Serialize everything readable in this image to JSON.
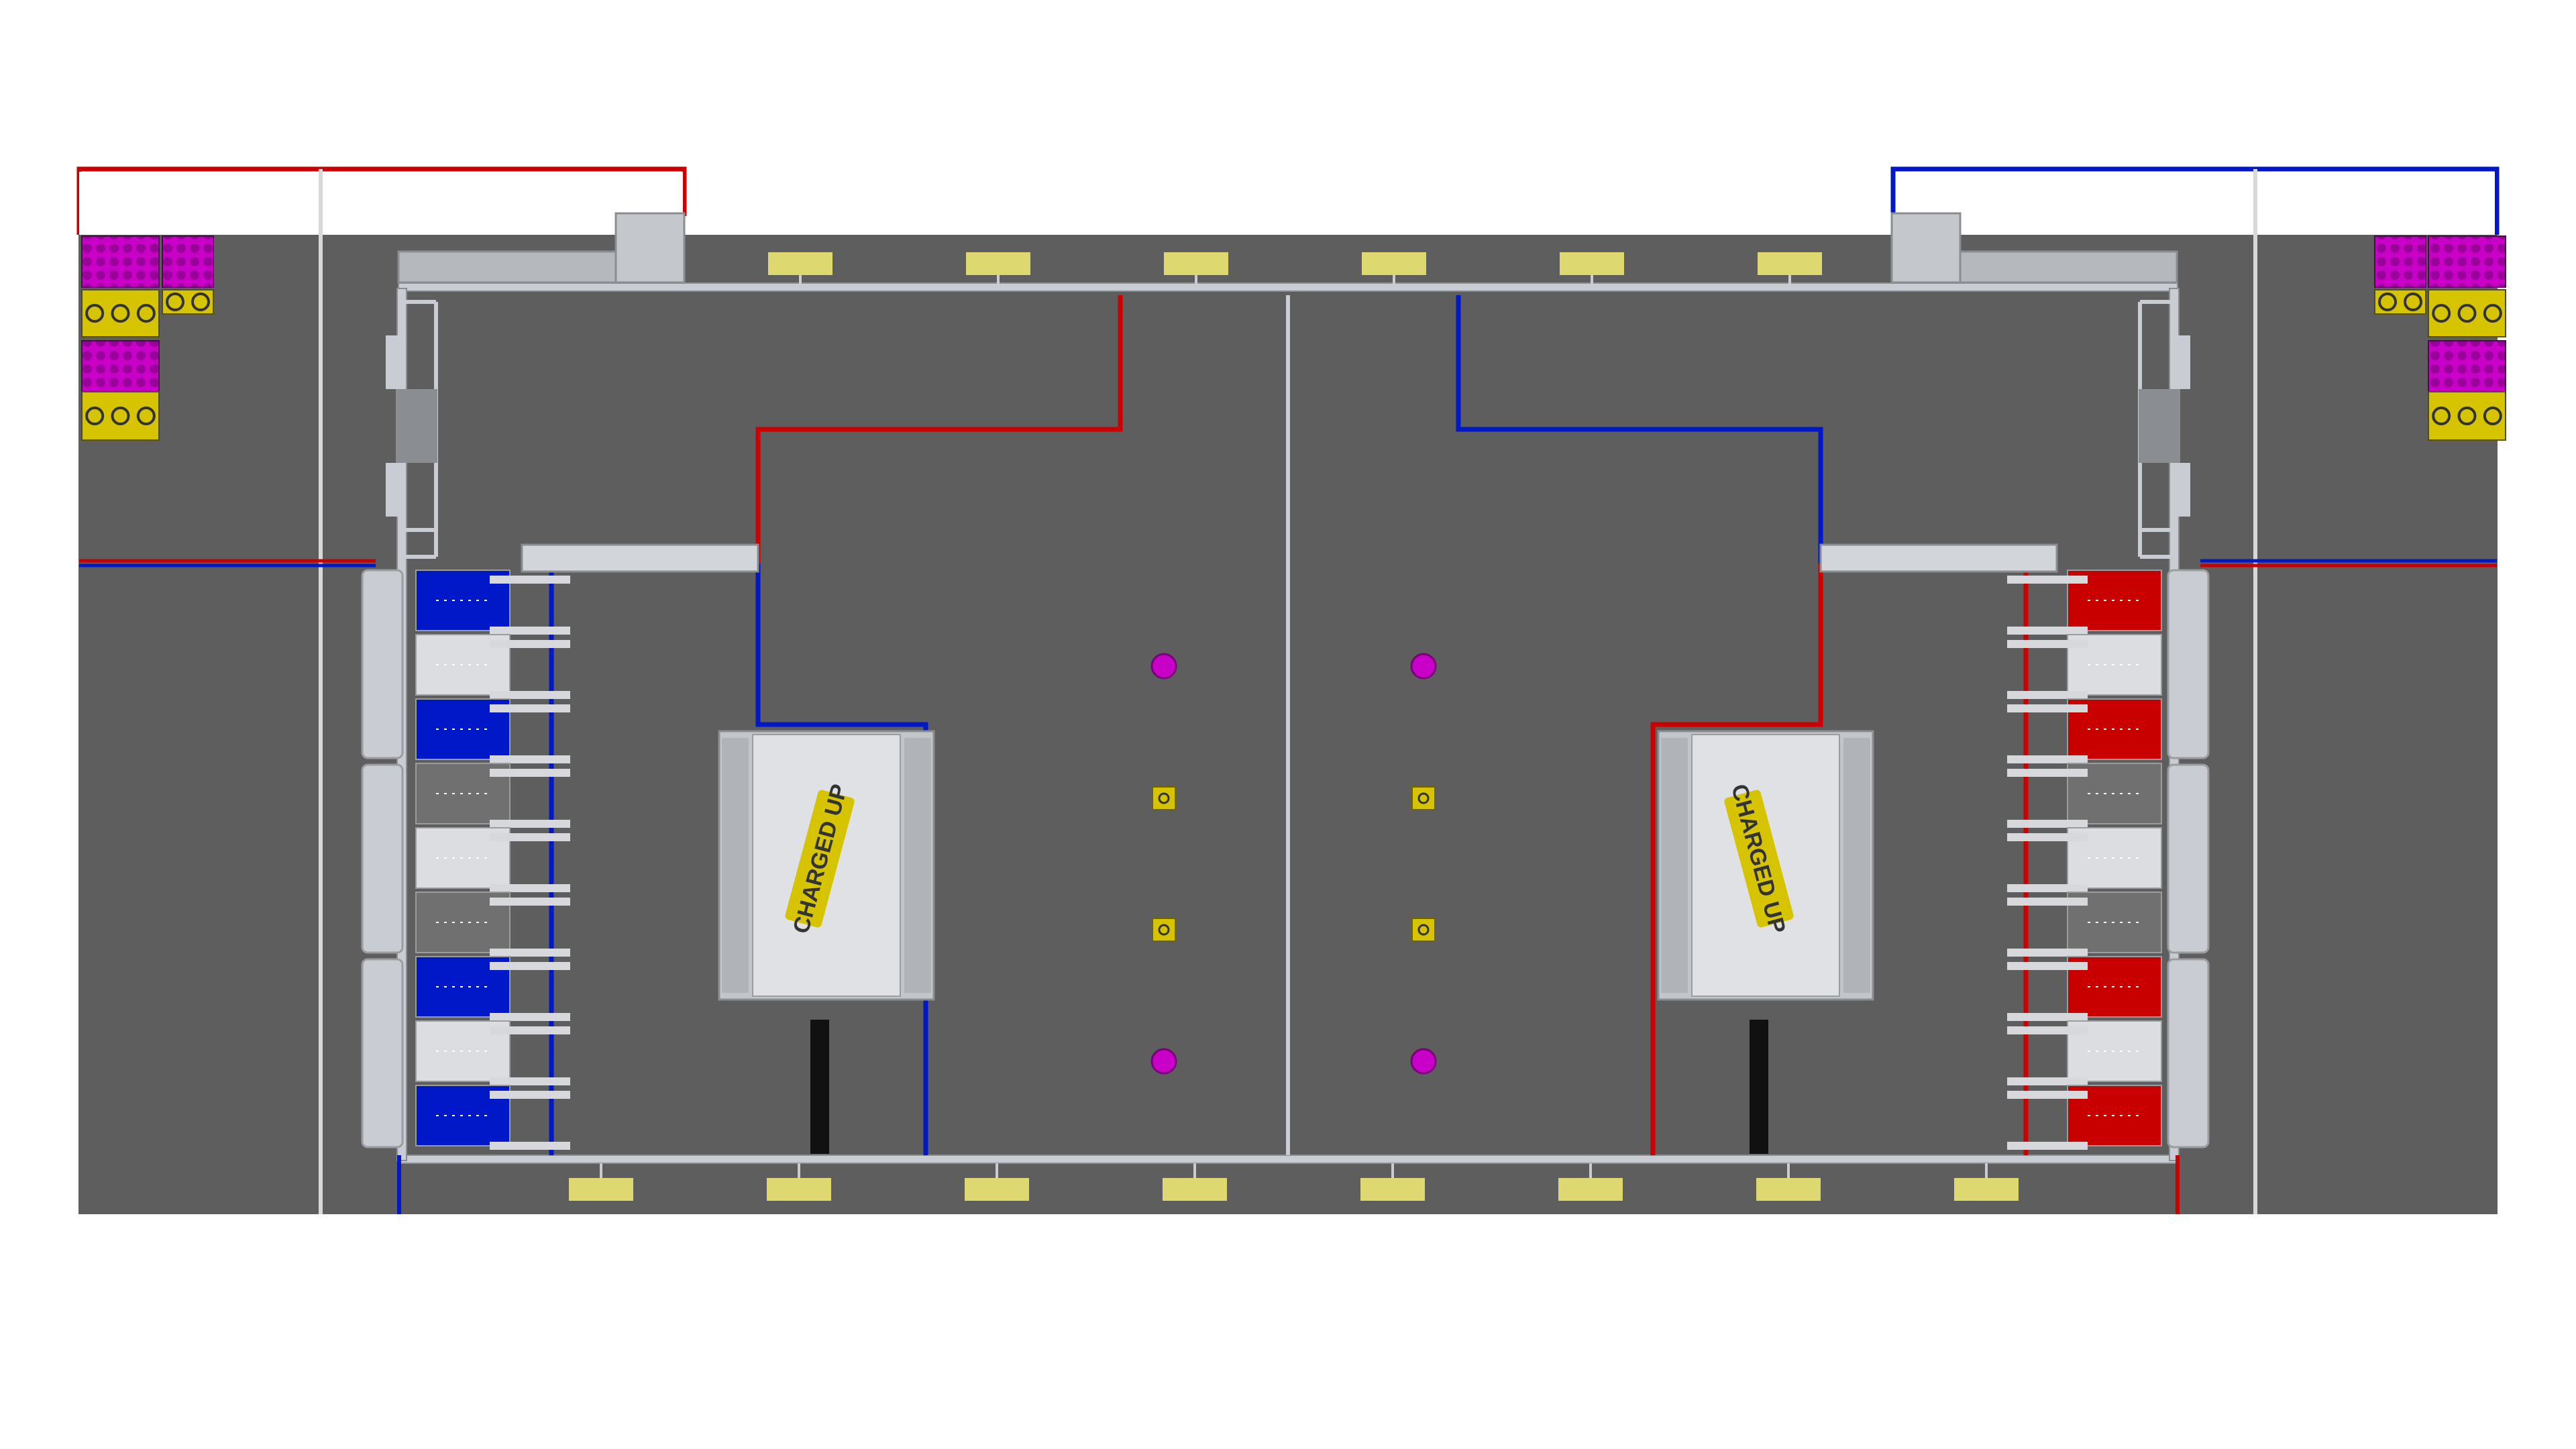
{
  "field": {
    "logo_text": "CHARGED UP",
    "carpet_color": "#5e5e5e",
    "wall_color": "#c9ccd3",
    "blue_color": "#0018c8",
    "red_color": "#c80000",
    "cube_color": "#c800c8",
    "cone_color": "#d6c400",
    "pad_color": "#ddd870"
  },
  "alliances": [
    {
      "name": "blue",
      "side": "left"
    },
    {
      "name": "red",
      "side": "right"
    }
  ],
  "staged_pieces": [
    {
      "type": "cube"
    },
    {
      "type": "cone"
    },
    {
      "type": "cone"
    },
    {
      "type": "cube"
    }
  ],
  "game_pieces_left_side": [
    {
      "type": "cube"
    },
    {
      "type": "cone"
    },
    {
      "type": "cone"
    },
    {
      "type": "cube"
    }
  ],
  "game_pieces_right_side": [
    {
      "type": "cube"
    },
    {
      "type": "cone"
    },
    {
      "type": "cone"
    },
    {
      "type": "cube"
    }
  ]
}
